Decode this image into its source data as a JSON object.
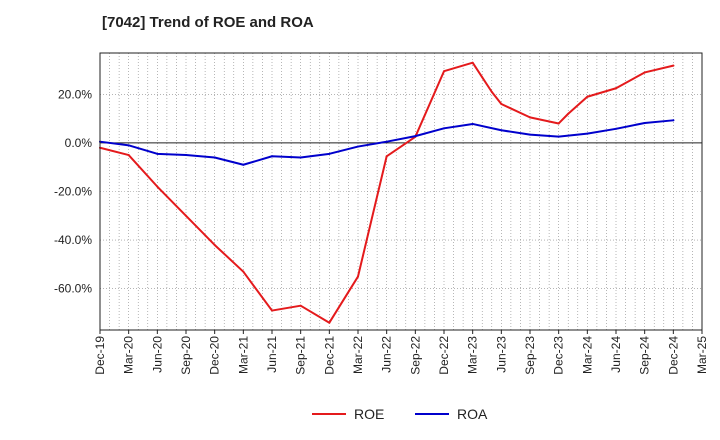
{
  "chart_data": {
    "type": "line",
    "title": "[7042]  Trend of ROE and ROA",
    "xlabel": "",
    "ylabel": "",
    "x": [
      "Dec-19",
      "Mar-20",
      "Jun-20",
      "Sep-20",
      "Dec-20",
      "Mar-21",
      "Jun-21",
      "Sep-21",
      "Dec-21",
      "Mar-22",
      "Jun-22",
      "Sep-22",
      "Dec-22",
      "Mar-23",
      "Jun-23",
      "Sep-23",
      "Dec-23",
      "Mar-24",
      "Jun-24",
      "Sep-24",
      "Dec-24",
      "Mar-25"
    ],
    "ylim": [
      -77,
      37
    ],
    "yticks": [
      20,
      0,
      -20,
      -40,
      -60
    ],
    "ytick_labels": [
      "20.0%",
      "0.0%",
      "-20.0%",
      "-40.0%",
      "-60.0%"
    ],
    "grid": true,
    "legend": "bottom",
    "series": [
      {
        "name": "ROE",
        "color": "#e41a1c",
        "points": [
          [
            "Dec-19",
            -2
          ],
          [
            "Mar-20",
            -5
          ],
          [
            "Jun-20",
            -18
          ],
          [
            "Sep-20",
            -30
          ],
          [
            "Dec-20",
            -42
          ],
          [
            "Mar-21",
            -53
          ],
          [
            "Jun-21",
            -69
          ],
          [
            "Sep-21",
            -67
          ],
          [
            "Dec-21",
            -74
          ],
          [
            "Mar-22",
            -55
          ],
          [
            "Jun-22",
            -5.5
          ],
          [
            "Sep-22",
            2.5
          ],
          [
            "Dec-22",
            29.5
          ],
          [
            "Mar-23",
            33
          ],
          [
            "Apr-23",
            27
          ],
          [
            "May-23",
            21
          ],
          [
            "Jun-23",
            16
          ],
          [
            "Sep-23",
            10.5
          ],
          [
            "Dec-23",
            8
          ],
          [
            "Jan-24",
            12
          ],
          [
            "Mar-24",
            19
          ],
          [
            "Jun-24",
            22.5
          ],
          [
            "Sep-24",
            29
          ],
          [
            "Dec-24",
            31.8
          ]
        ]
      },
      {
        "name": "ROA",
        "color": "#0000cc",
        "points": [
          [
            "Dec-19",
            0.5
          ],
          [
            "Mar-20",
            -1
          ],
          [
            "Jun-20",
            -4.5
          ],
          [
            "Sep-20",
            -5
          ],
          [
            "Dec-20",
            -6
          ],
          [
            "Mar-21",
            -9
          ],
          [
            "Jun-21",
            -5.5
          ],
          [
            "Sep-21",
            -6
          ],
          [
            "Dec-21",
            -4.5
          ],
          [
            "Mar-22",
            -1.5
          ],
          [
            "Jun-22",
            0.5
          ],
          [
            "Sep-22",
            2.8
          ],
          [
            "Dec-22",
            6
          ],
          [
            "Mar-23",
            7.8
          ],
          [
            "Jun-23",
            5.2
          ],
          [
            "Sep-23",
            3.4
          ],
          [
            "Dec-23",
            2.6
          ],
          [
            "Mar-24",
            3.8
          ],
          [
            "Jun-24",
            5.8
          ],
          [
            "Sep-24",
            8.2
          ],
          [
            "Dec-24",
            9.3
          ]
        ]
      }
    ]
  }
}
